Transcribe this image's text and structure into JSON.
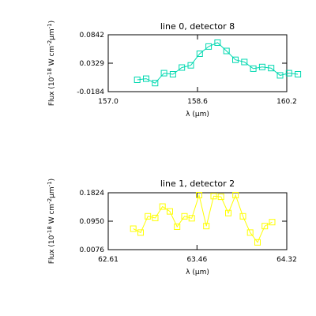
{
  "chart_data": [
    {
      "type": "line",
      "title": "line 0, detector 8",
      "xlabel": "λ (μm)",
      "ylabel": "Flux (10^-18 W cm^-2 μm^-1)",
      "ylabel_parts": {
        "a": "Flux (10",
        "b": "-18",
        "c": " W cm",
        "d": "-2",
        "e": "μm",
        "f": "-1",
        "g": ")"
      },
      "xlim": [
        157.0,
        160.2
      ],
      "ylim": [
        -0.0184,
        0.0842
      ],
      "xtick_labels": [
        "157.0",
        "158.6",
        "160.2"
      ],
      "ytick_labels": [
        "-0.0184",
        "0.0329",
        "0.0842"
      ],
      "xtick_values": [
        157.0,
        158.6,
        160.2
      ],
      "ytick_values": [
        -0.0184,
        0.0329,
        0.0842
      ],
      "grid": false,
      "series": [
        {
          "color": "#00d8b0",
          "marker": "square",
          "x": [
            157.52,
            157.68,
            157.84,
            158.0,
            158.16,
            158.32,
            158.48,
            158.64,
            158.8,
            158.96,
            159.12,
            159.28,
            159.44,
            159.6,
            159.76,
            159.92,
            160.08,
            160.24,
            160.4
          ],
          "y": [
            0.003,
            0.005,
            -0.003,
            0.015,
            0.013,
            0.025,
            0.029,
            0.05,
            0.063,
            0.07,
            0.055,
            0.039,
            0.035,
            0.023,
            0.026,
            0.024,
            0.011,
            0.015,
            0.013
          ]
        }
      ]
    },
    {
      "type": "line",
      "title": "line 1, detector 2",
      "xlabel": "λ (μm)",
      "ylabel": "Flux (10^-18 W cm^-2 μm^-1)",
      "ylabel_parts": {
        "a": "Flux (10",
        "b": "-18",
        "c": " W cm",
        "d": "-2",
        "e": "μm",
        "f": "-1",
        "g": ")"
      },
      "xlim": [
        62.61,
        64.32
      ],
      "ylim": [
        0.0076,
        0.1824
      ],
      "xtick_labels": [
        "62.61",
        "63.46",
        "64.32"
      ],
      "ytick_labels": [
        "0.0076",
        "0.0950",
        "0.1824"
      ],
      "xtick_values": [
        62.61,
        63.46,
        64.32
      ],
      "ytick_values": [
        0.0076,
        0.095,
        0.1824
      ],
      "grid": false,
      "series": [
        {
          "color": "#ffff00",
          "marker": "square",
          "x": [
            62.85,
            62.92,
            62.99,
            63.06,
            63.13,
            63.2,
            63.27,
            63.34,
            63.41,
            63.48,
            63.55,
            63.62,
            63.69,
            63.76,
            63.83,
            63.9,
            63.97,
            64.04,
            64.11,
            64.18
          ],
          "y": [
            0.072,
            0.06,
            0.11,
            0.105,
            0.14,
            0.125,
            0.078,
            0.11,
            0.104,
            0.175,
            0.08,
            0.172,
            0.17,
            0.12,
            0.175,
            0.11,
            0.06,
            0.03,
            0.08,
            0.092
          ]
        }
      ]
    }
  ]
}
